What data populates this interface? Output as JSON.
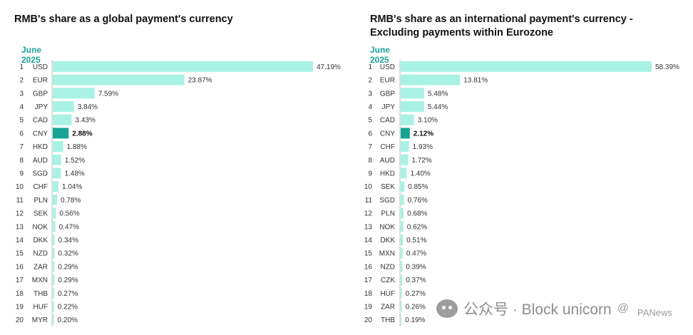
{
  "chart_data": [
    {
      "type": "bar",
      "orientation": "horizontal",
      "title": "RMB's share as a global payment's currency",
      "subtitle": "June 2025",
      "highlight": "CNY",
      "xlim": [
        0,
        47.19
      ],
      "ranks": [
        1,
        2,
        3,
        4,
        5,
        6,
        7,
        8,
        9,
        10,
        11,
        12,
        13,
        14,
        15,
        16,
        17,
        18,
        19,
        20
      ],
      "categories": [
        "USD",
        "EUR",
        "GBP",
        "JPY",
        "CAD",
        "CNY",
        "HKD",
        "AUD",
        "SGD",
        "CHF",
        "PLN",
        "SEK",
        "NOK",
        "DKK",
        "NZD",
        "ZAR",
        "MXN",
        "THB",
        "HUF",
        "MYR"
      ],
      "values": [
        47.19,
        23.87,
        7.59,
        3.84,
        3.43,
        2.88,
        1.88,
        1.52,
        1.48,
        1.04,
        0.78,
        0.56,
        0.47,
        0.34,
        0.32,
        0.29,
        0.29,
        0.27,
        0.22,
        0.2
      ],
      "labels": [
        "47.19%",
        "23.87%",
        "7.59%",
        "3.84%",
        "3.43%",
        "2.88%",
        "1.88%",
        "1.52%",
        "1.48%",
        "1.04%",
        "0.78%",
        "0.56%",
        "0.47%",
        "0.34%",
        "0.32%",
        "0.29%",
        "0.29%",
        "0.27%",
        "0.22%",
        "0.20%"
      ]
    },
    {
      "type": "bar",
      "orientation": "horizontal",
      "title": "RMB's share as an international payment's currency - Excluding payments within Eurozone",
      "subtitle": "June 2025",
      "highlight": "CNY",
      "xlim": [
        0,
        58.39
      ],
      "ranks": [
        1,
        2,
        3,
        4,
        5,
        6,
        7,
        8,
        9,
        10,
        11,
        12,
        13,
        14,
        15,
        16,
        17,
        18,
        19,
        20
      ],
      "categories": [
        "USD",
        "EUR",
        "GBP",
        "JPY",
        "CAD",
        "CNY",
        "CHF",
        "AUD",
        "HKD",
        "SEK",
        "SGD",
        "PLN",
        "NOK",
        "DKK",
        "MXN",
        "NZD",
        "CZK",
        "HUF",
        "ZAR",
        "THB"
      ],
      "values": [
        58.39,
        13.81,
        5.48,
        5.44,
        3.1,
        2.12,
        1.93,
        1.72,
        1.4,
        0.85,
        0.76,
        0.68,
        0.62,
        0.51,
        0.47,
        0.39,
        0.37,
        0.27,
        0.26,
        0.19
      ],
      "labels": [
        "58.39%",
        "13.81%",
        "5.48%",
        "5.44%",
        "3.10%",
        "2.12%",
        "1.93%",
        "1.72%",
        "1.40%",
        "0.85%",
        "0.76%",
        "0.68%",
        "0.62%",
        "0.51%",
        "0.47%",
        "0.39%",
        "0.37%",
        "0.27%",
        "0.26%",
        "0.19%"
      ]
    }
  ],
  "colors": {
    "bar": "#a8f2e3",
    "highlight": "#16a393",
    "axis": "#bdbdbd",
    "text": "#333333"
  },
  "watermark": {
    "text": "公众号 · Block unicorn",
    "separator": "@",
    "source": "PANews"
  }
}
